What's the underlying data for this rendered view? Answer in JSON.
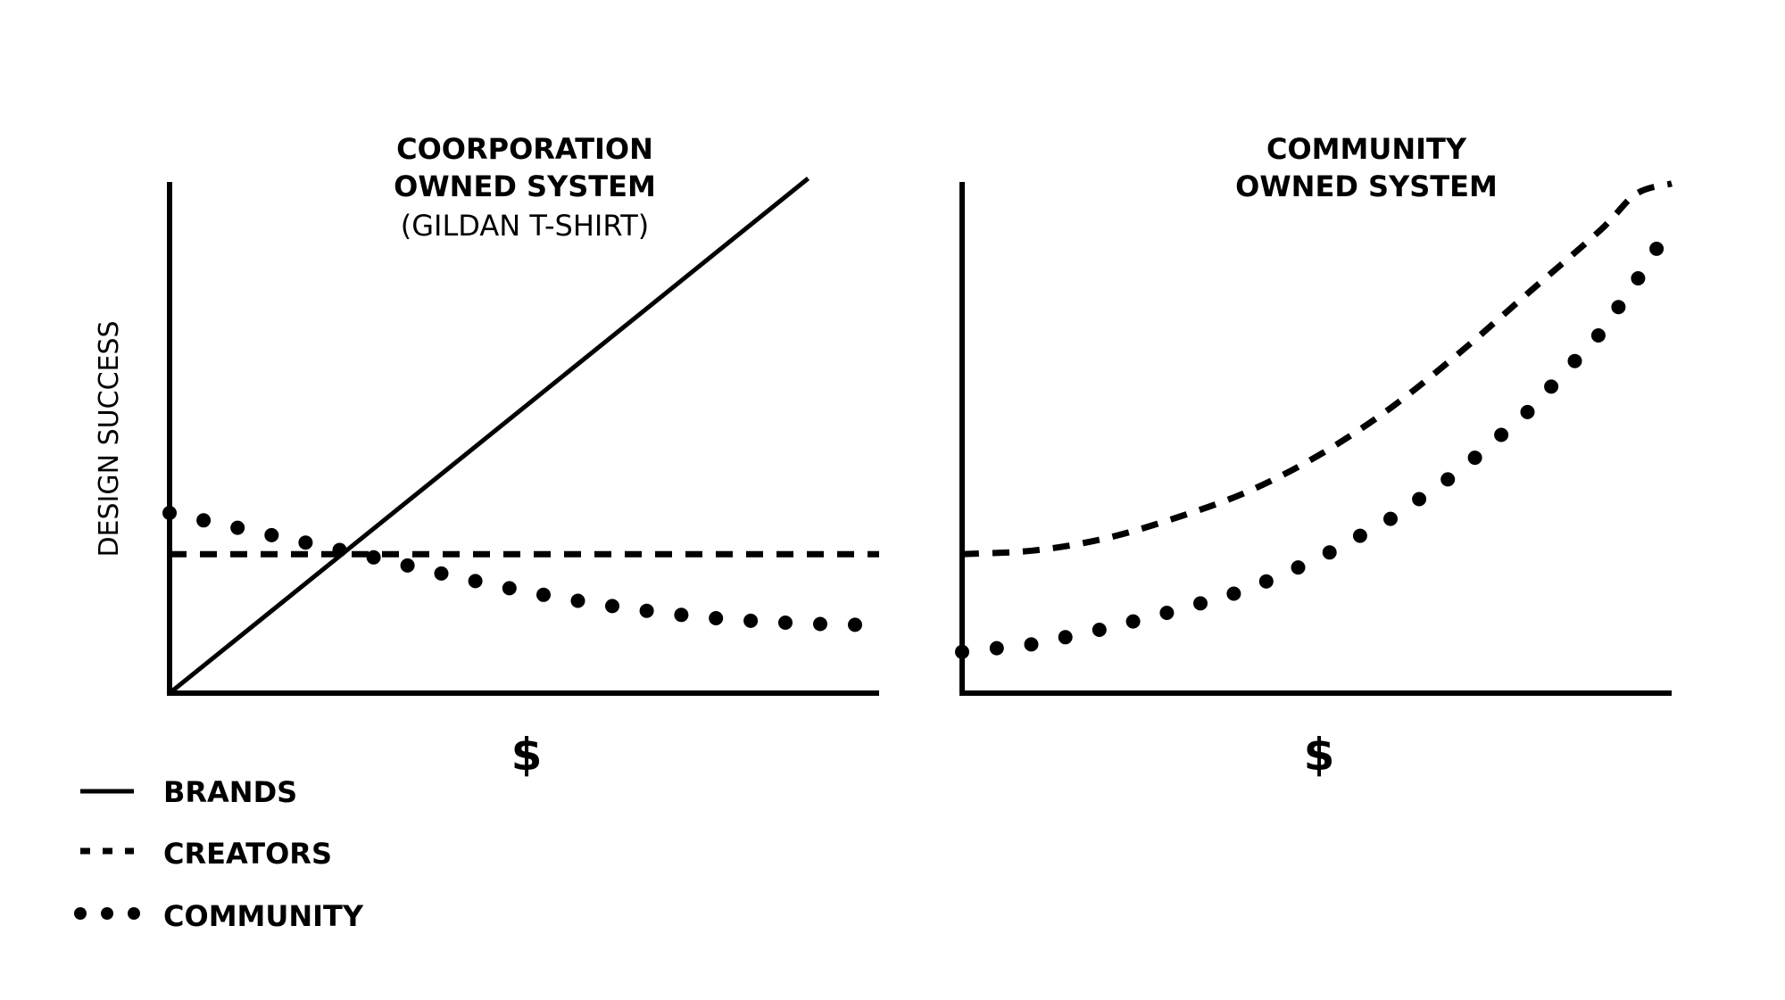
{
  "chart_data": [
    {
      "type": "line",
      "title_lines": [
        "COORPORATION",
        "OWNED SYSTEM"
      ],
      "subtitle": "(GILDAN T-SHIRT)",
      "xlabel": "$",
      "ylabel": "DESIGN SUCCESS",
      "xlim": [
        0,
        10
      ],
      "ylim": [
        0,
        10
      ],
      "grid": false,
      "series": [
        {
          "name": "BRANDS",
          "style": "solid",
          "x": [
            0,
            9
          ],
          "y": [
            0,
            10
          ]
        },
        {
          "name": "CREATORS",
          "style": "dashed",
          "x": [
            0,
            10
          ],
          "y": [
            2.7,
            2.7
          ]
        },
        {
          "name": "COMMUNITY",
          "style": "dotted",
          "x": [
            0,
            0.5,
            1,
            1.5,
            2,
            2.5,
            3,
            3.5,
            4,
            4.5,
            5,
            5.5,
            6,
            6.5,
            7,
            7.5,
            8,
            8.5,
            9,
            9.5,
            10
          ],
          "y": [
            3.5,
            3.35,
            3.2,
            3.05,
            2.9,
            2.75,
            2.6,
            2.43,
            2.27,
            2.12,
            1.98,
            1.85,
            1.74,
            1.64,
            1.55,
            1.48,
            1.42,
            1.38,
            1.35,
            1.33,
            1.32
          ]
        }
      ]
    },
    {
      "type": "line",
      "title_lines": [
        "COMMUNITY",
        "OWNED SYSTEM"
      ],
      "xlabel": "$",
      "xlim": [
        0,
        10
      ],
      "ylim": [
        0,
        10
      ],
      "grid": false,
      "series": [
        {
          "name": "CREATORS",
          "style": "dashed",
          "x": [
            0,
            1,
            2,
            3,
            4,
            5,
            6,
            7,
            8,
            9,
            9.5,
            10
          ],
          "y": [
            2.7,
            2.77,
            3.0,
            3.4,
            3.9,
            4.6,
            5.5,
            6.6,
            7.8,
            9.0,
            9.7,
            9.9
          ]
        },
        {
          "name": "COMMUNITY",
          "style": "dotted",
          "x": [
            0,
            1,
            2,
            3,
            4,
            5,
            6,
            7,
            8,
            9,
            9.5,
            10
          ],
          "y": [
            0.8,
            0.95,
            1.25,
            1.6,
            2.0,
            2.6,
            3.35,
            4.3,
            5.5,
            7.0,
            8.0,
            9.1
          ]
        }
      ]
    }
  ],
  "legend": {
    "placement": "bottom-left",
    "items": [
      {
        "label": "BRANDS",
        "style": "solid"
      },
      {
        "label": "CREATORS",
        "style": "dashed"
      },
      {
        "label": "COMMUNITY",
        "style": "dotted"
      }
    ]
  },
  "colors": {
    "ink": "#000000",
    "background": "#ffffff"
  }
}
